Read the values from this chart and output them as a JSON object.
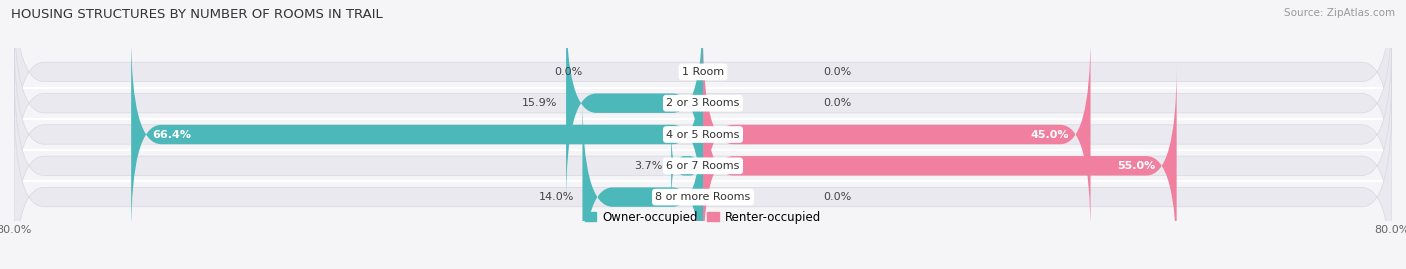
{
  "title": "HOUSING STRUCTURES BY NUMBER OF ROOMS IN TRAIL",
  "source": "Source: ZipAtlas.com",
  "categories": [
    "1 Room",
    "2 or 3 Rooms",
    "4 or 5 Rooms",
    "6 or 7 Rooms",
    "8 or more Rooms"
  ],
  "owner_values": [
    0.0,
    15.9,
    66.4,
    3.7,
    14.0
  ],
  "renter_values": [
    0.0,
    0.0,
    45.0,
    55.0,
    0.0
  ],
  "owner_color": "#4db8ba",
  "renter_color": "#f07fa0",
  "bar_bg_color": "#e9e9ef",
  "bar_bg_outline": "#d8d8e0",
  "axis_min": -80.0,
  "axis_max": 80.0,
  "legend_owner": "Owner-occupied",
  "legend_renter": "Renter-occupied",
  "title_fontsize": 9.5,
  "label_fontsize": 8,
  "tick_fontsize": 8,
  "cat_label_fontsize": 8,
  "bg_color": "#f5f5f8"
}
